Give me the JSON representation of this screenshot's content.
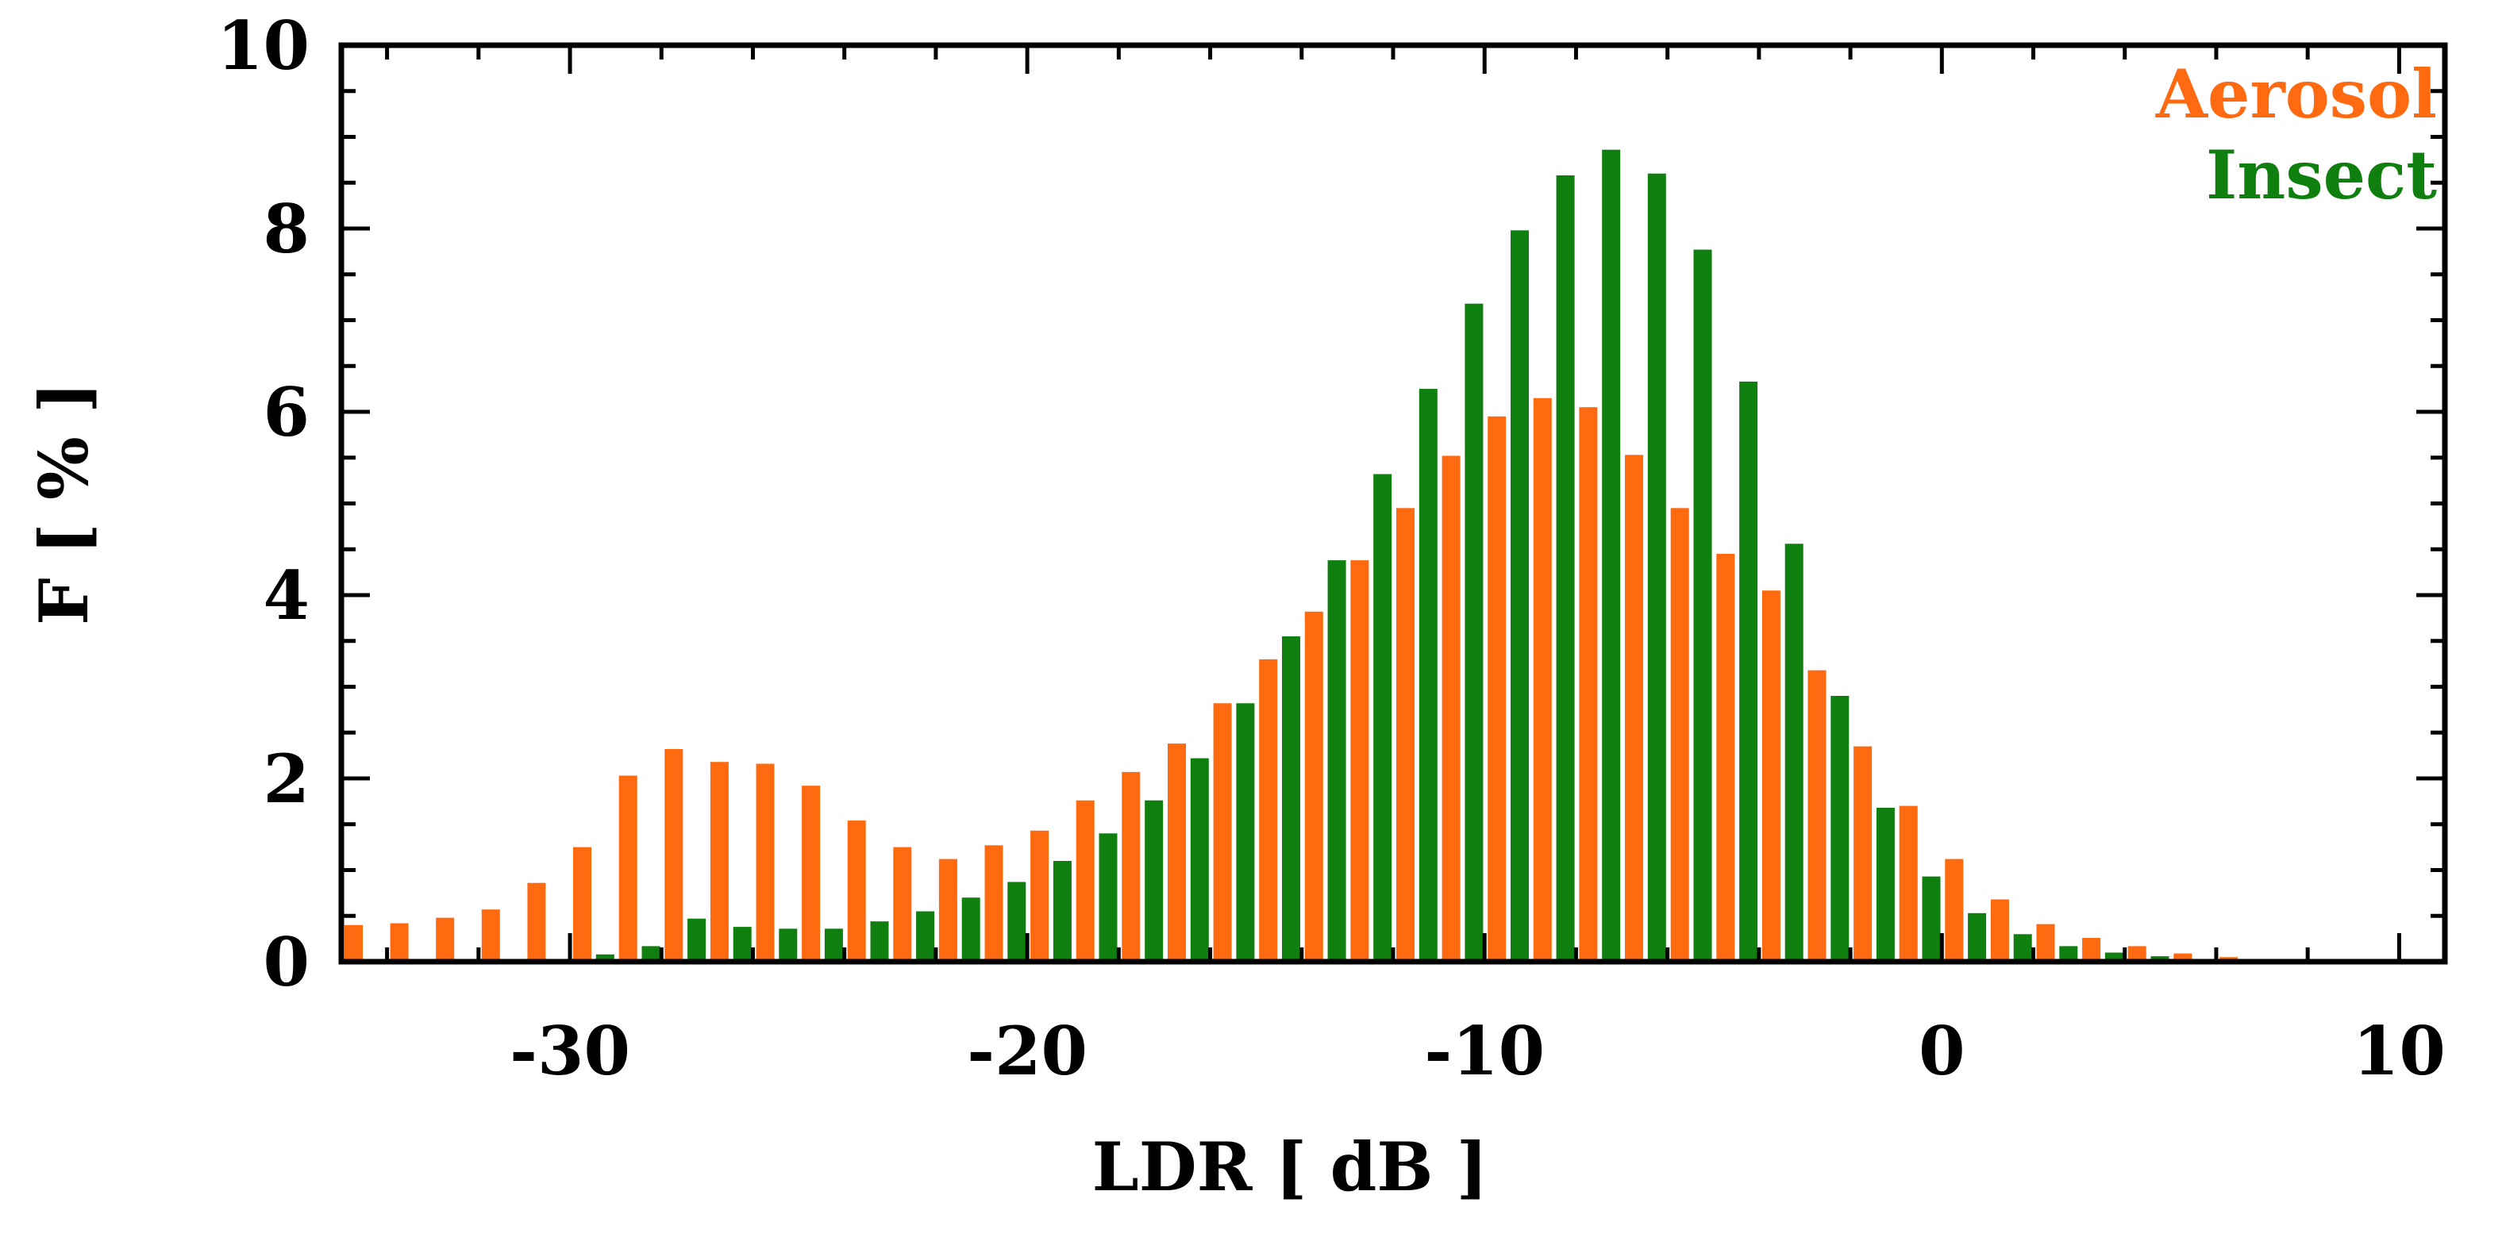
{
  "chart_data": {
    "type": "bar",
    "xlabel": "LDR [ dB ]",
    "ylabel": "F [ % ]",
    "xlim": [
      -35,
      11
    ],
    "ylim": [
      0,
      10
    ],
    "xticks": [
      -30,
      -20,
      -10,
      0,
      10
    ],
    "yticks": [
      0,
      2,
      4,
      6,
      8,
      10
    ],
    "xtick_labels": [
      "-30",
      "-20",
      "-10",
      "0",
      "10"
    ],
    "ytick_labels": [
      "0",
      "2",
      "4",
      "6",
      "8",
      "10"
    ],
    "bin_width": 1,
    "grid": false,
    "legend_position": "top-right",
    "x": [
      -35,
      -34,
      -33,
      -32,
      -31,
      -30,
      -29,
      -28,
      -27,
      -26,
      -25,
      -24,
      -23,
      -22,
      -21,
      -20,
      -19,
      -18,
      -17,
      -16,
      -15,
      -14,
      -13,
      -12,
      -11,
      -10,
      -9,
      -8,
      -7,
      -6,
      -5,
      -4,
      -3,
      -2,
      -1,
      0,
      1,
      2,
      3,
      4,
      5,
      6,
      7,
      8,
      9,
      10
    ],
    "series": [
      {
        "name": "Aerosol",
        "color": "#ff6a10",
        "values": [
          0.4,
          0.42,
          0.48,
          0.57,
          0.86,
          1.25,
          2.03,
          2.32,
          2.18,
          2.16,
          1.92,
          1.54,
          1.25,
          1.12,
          1.27,
          1.43,
          1.76,
          2.07,
          2.38,
          2.82,
          3.3,
          3.82,
          4.38,
          4.95,
          5.52,
          5.95,
          6.15,
          6.05,
          5.53,
          4.95,
          4.45,
          4.05,
          3.18,
          2.35,
          1.7,
          1.12,
          0.68,
          0.41,
          0.26,
          0.17,
          0.09,
          0.05,
          0.03,
          0.02,
          0.01,
          0.0
        ]
      },
      {
        "name": "Insect",
        "color": "#0f7f0f",
        "values": [
          0.0,
          0.0,
          0.0,
          0.0,
          0.0,
          0.08,
          0.17,
          0.47,
          0.38,
          0.36,
          0.36,
          0.44,
          0.55,
          0.7,
          0.87,
          1.1,
          1.4,
          1.76,
          2.22,
          2.82,
          3.55,
          4.38,
          5.32,
          6.25,
          7.18,
          7.98,
          8.58,
          8.86,
          8.6,
          7.77,
          6.33,
          4.56,
          2.9,
          1.68,
          0.93,
          0.53,
          0.3,
          0.17,
          0.1,
          0.06,
          0.03,
          0.02,
          0.01,
          0.0,
          0.0,
          0.0
        ]
      }
    ]
  }
}
